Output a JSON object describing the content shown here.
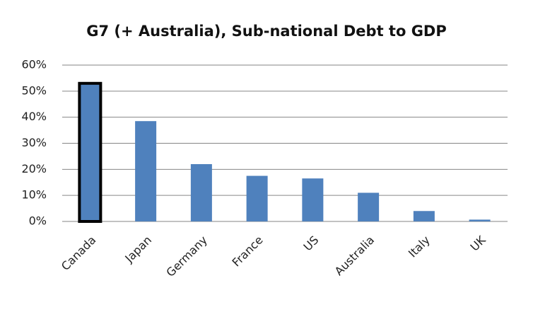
{
  "chart_data": {
    "type": "bar",
    "title": "G7 (+ Australia), Sub-national Debt to GDP",
    "categories": [
      "Canada",
      "Japan",
      "Germany",
      "France",
      "US",
      "Australia",
      "Italy",
      "UK"
    ],
    "values": [
      53,
      38.5,
      22,
      17.5,
      16.5,
      11,
      4,
      0.7
    ],
    "color": "#4f81bd",
    "edgecolors": [
      "#000000",
      null,
      null,
      null,
      null,
      null,
      null,
      null
    ],
    "ylim": [
      0,
      60
    ],
    "yticks": [
      {
        "value": 0,
        "label": "0%"
      },
      {
        "value": 10,
        "label": "10%"
      },
      {
        "value": 20,
        "label": "20%"
      },
      {
        "value": 30,
        "label": "30%"
      },
      {
        "value": 40,
        "label": "40%"
      },
      {
        "value": 50,
        "label": "50%"
      },
      {
        "value": 60,
        "label": "60%"
      }
    ],
    "grid": true
  }
}
